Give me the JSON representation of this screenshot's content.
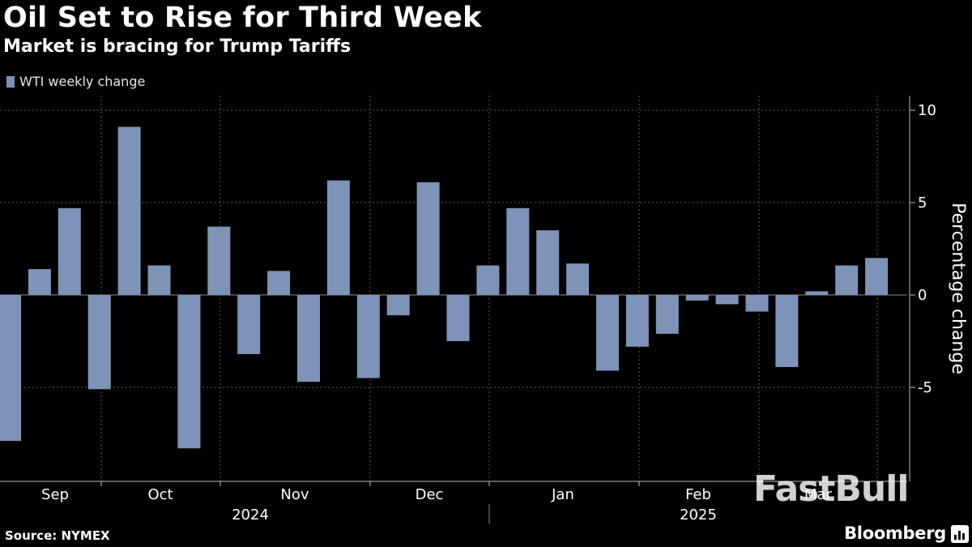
{
  "header": {
    "title": "Oil Set to Rise for Third Week",
    "subtitle": "Market is bracing for Trump Tariffs"
  },
  "footer": {
    "source": "Source: NYMEX",
    "brand": "Bloomberg",
    "watermark": "FastBull"
  },
  "colors": {
    "bar": "#7d93b7",
    "background": "#000000",
    "gridline": "#5a5a5a"
  },
  "chart_data": {
    "type": "bar",
    "legend": [
      "WTI weekly change"
    ],
    "legend_placement": "top-left",
    "ylabel": "Percentage change",
    "ylim": [
      -10,
      10
    ],
    "yticks": [
      -5,
      0,
      5,
      10
    ],
    "grid": true,
    "month_labels": [
      "Sep",
      "Oct",
      "Nov",
      "Dec",
      "Jan",
      "Feb",
      "Mar"
    ],
    "year_labels": [
      "2024",
      "2025"
    ],
    "series": [
      {
        "name": "WTI weekly change",
        "values": [
          -7.9,
          1.4,
          4.7,
          -5.1,
          9.1,
          1.6,
          -8.3,
          3.7,
          -3.2,
          1.3,
          -4.7,
          6.2,
          -4.5,
          -1.1,
          6.1,
          -2.5,
          1.6,
          4.7,
          3.5,
          1.7,
          -4.1,
          -2.8,
          -2.1,
          -0.3,
          -0.5,
          -0.9,
          -3.9,
          0.2,
          1.6,
          2.0
        ]
      }
    ]
  }
}
